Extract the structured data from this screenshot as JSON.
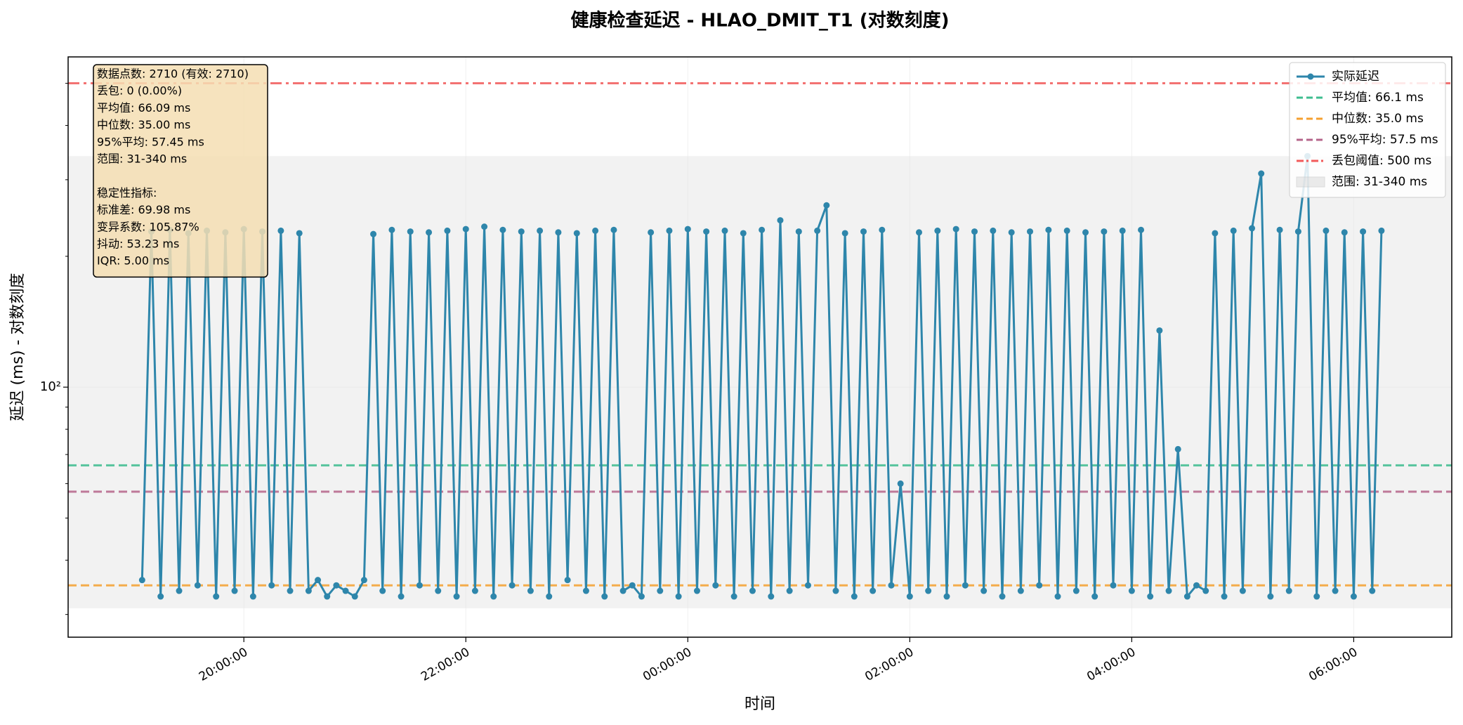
{
  "chart_data": {
    "type": "line",
    "title": "健康检查延迟 - HLAO_DMIT_T1 (对数刻度)",
    "x_label": "时间",
    "y_label": "延迟 (ms) - 对数刻度",
    "log_y": true,
    "grid": true,
    "legend": "upper right",
    "xlim": [
      "18:25:00",
      "06:53:00"
    ],
    "xticks": [
      "20:00:00",
      "22:00:00",
      "00:00:00",
      "02:00:00",
      "04:00:00",
      "06:00:00"
    ],
    "ylim": [
      26.6,
      575
    ],
    "yticks": [
      {
        "value": 100,
        "label": "10²"
      }
    ],
    "x": [
      "19:05:00",
      "19:10:00",
      "19:15:00",
      "19:20:00",
      "19:25:00",
      "19:30:00",
      "19:35:00",
      "19:40:00",
      "19:45:00",
      "19:50:00",
      "19:55:00",
      "20:00:00",
      "20:05:00",
      "20:10:00",
      "20:15:00",
      "20:20:00",
      "20:25:00",
      "20:30:00",
      "20:35:00",
      "20:40:00",
      "20:45:00",
      "20:50:00",
      "20:55:00",
      "21:00:00",
      "21:05:00",
      "21:10:00",
      "21:15:00",
      "21:20:00",
      "21:25:00",
      "21:30:00",
      "21:35:00",
      "21:40:00",
      "21:45:00",
      "21:50:00",
      "21:55:00",
      "22:00:00",
      "22:05:00",
      "22:10:00",
      "22:15:00",
      "22:20:00",
      "22:25:00",
      "22:30:00",
      "22:35:00",
      "22:40:00",
      "22:45:00",
      "22:50:00",
      "22:55:00",
      "23:00:00",
      "23:05:00",
      "23:10:00",
      "23:15:00",
      "23:20:00",
      "23:25:00",
      "23:30:00",
      "23:35:00",
      "23:40:00",
      "23:45:00",
      "23:50:00",
      "23:55:00",
      "00:00:00",
      "00:05:00",
      "00:10:00",
      "00:15:00",
      "00:20:00",
      "00:25:00",
      "00:30:00",
      "00:35:00",
      "00:40:00",
      "00:45:00",
      "00:50:00",
      "00:55:00",
      "01:00:00",
      "01:05:00",
      "01:10:00",
      "01:15:00",
      "01:20:00",
      "01:25:00",
      "01:30:00",
      "01:35:00",
      "01:40:00",
      "01:45:00",
      "01:50:00",
      "01:55:00",
      "02:00:00",
      "02:05:00",
      "02:10:00",
      "02:15:00",
      "02:20:00",
      "02:25:00",
      "02:30:00",
      "02:35:00",
      "02:40:00",
      "02:45:00",
      "02:50:00",
      "02:55:00",
      "03:00:00",
      "03:05:00",
      "03:10:00",
      "03:15:00",
      "03:20:00",
      "03:25:00",
      "03:30:00",
      "03:35:00",
      "03:40:00",
      "03:45:00",
      "03:50:00",
      "03:55:00",
      "04:00:00",
      "04:05:00",
      "04:10:00",
      "04:15:00",
      "04:20:00",
      "04:25:00",
      "04:30:00",
      "04:35:00",
      "04:40:00",
      "04:45:00",
      "04:50:00",
      "04:55:00",
      "05:00:00",
      "05:05:00",
      "05:10:00",
      "05:15:00",
      "05:20:00",
      "05:25:00",
      "05:30:00",
      "05:35:00",
      "05:40:00",
      "05:45:00",
      "05:50:00",
      "05:55:00",
      "06:00:00",
      "06:05:00",
      "06:10:00",
      "06:15:00"
    ],
    "series": [
      {
        "name": "实际延迟",
        "color": "#2e86ab",
        "values": [
          36,
          228,
          33,
          230,
          34,
          226,
          35,
          229,
          33,
          227,
          34,
          231,
          33,
          228,
          35,
          229,
          34,
          226,
          34,
          36,
          33,
          35,
          34,
          33,
          36,
          225,
          34,
          230,
          33,
          228,
          35,
          227,
          34,
          229,
          33,
          231,
          34,
          234,
          33,
          230,
          35,
          228,
          34,
          229,
          33,
          227,
          36,
          226,
          34,
          229,
          33,
          230,
          34,
          35,
          33,
          227,
          34,
          229,
          33,
          231,
          34,
          228,
          35,
          229,
          33,
          226,
          34,
          230,
          33,
          242,
          34,
          228,
          35,
          229,
          262,
          34,
          226,
          33,
          228,
          34,
          230,
          35,
          60,
          33,
          227,
          34,
          229,
          33,
          231,
          35,
          228,
          34,
          229,
          33,
          227,
          34,
          228,
          35,
          230,
          33,
          229,
          34,
          227,
          33,
          228,
          35,
          229,
          34,
          230,
          33,
          135,
          34,
          72,
          33,
          35,
          34,
          226,
          33,
          229,
          34,
          232,
          310,
          33,
          230,
          34,
          228,
          340,
          33,
          229,
          34,
          227,
          33,
          228,
          34,
          229
        ]
      }
    ],
    "hlines": [
      {
        "label": "平均值: 66.1 ms",
        "value": 66.1,
        "color": "#3dbd8f",
        "style": "dashed"
      },
      {
        "label": "中位数: 35.0 ms",
        "value": 35.0,
        "color": "#f5a030",
        "style": "dashed"
      },
      {
        "label": "95%平均: 57.5 ms",
        "value": 57.5,
        "color": "#b5648a",
        "style": "dashed"
      },
      {
        "label": "丢包阈值: 500 ms",
        "value": 500,
        "color": "#f25a5a",
        "style": "dashdot"
      }
    ],
    "range_band": {
      "label": "范围: 31-340 ms",
      "min": 31,
      "max": 340,
      "color": "#d9d9d9"
    },
    "stats_box": {
      "lines": [
        "数据点数: 2710 (有效: 2710)",
        "丢包: 0 (0.00%)",
        "平均值: 66.09 ms",
        "中位数: 35.00 ms",
        "95%平均: 57.45 ms",
        "范围: 31-340 ms"
      ],
      "stability_title": "稳定性指标:",
      "stability_lines": [
        "标准差: 69.98 ms",
        "变异系数: 105.87%",
        "抖动: 53.23 ms",
        "IQR: 5.00 ms"
      ]
    }
  }
}
